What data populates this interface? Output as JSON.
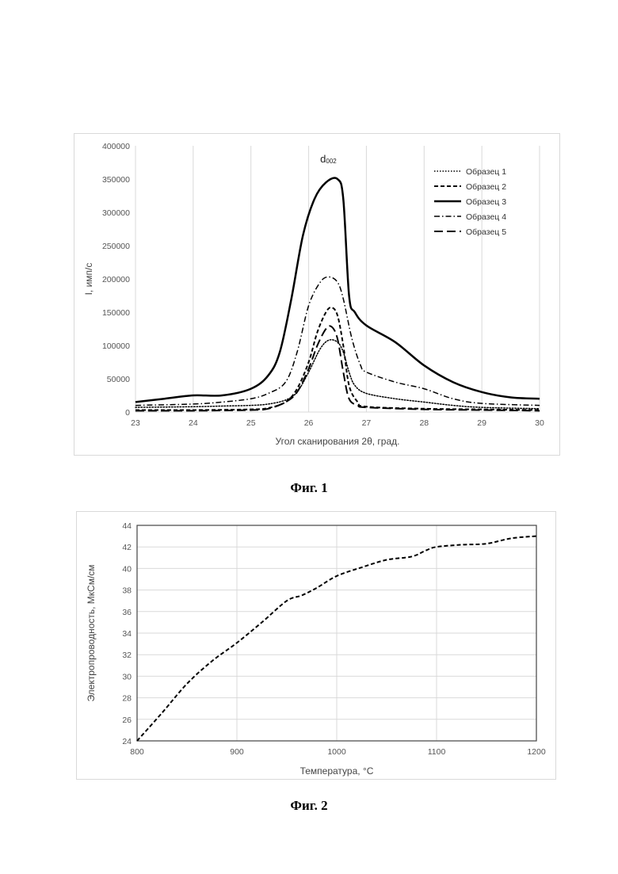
{
  "chart_data": [
    {
      "type": "line",
      "title": "",
      "xlabel": "Угол сканирования 2θ, град.",
      "ylabel": "I, имп/с",
      "xlim": [
        23,
        30
      ],
      "ylim": [
        0,
        400000
      ],
      "xticks": [
        23,
        24,
        25,
        26,
        27,
        28,
        29,
        30
      ],
      "yticks": [
        0,
        50000,
        100000,
        150000,
        200000,
        250000,
        300000,
        350000,
        400000
      ],
      "grid": "vertical",
      "legend_position": "top-right",
      "annotation": {
        "base": "d",
        "sub": "002",
        "x": 26.2,
        "y": 375000
      },
      "series": [
        {
          "name": "Образец 1",
          "dash": "dotted",
          "width": 1.5,
          "x": [
            23,
            24,
            24.5,
            25,
            25.3,
            25.6,
            25.8,
            26.0,
            26.2,
            26.35,
            26.5,
            26.6,
            26.7,
            26.8,
            27.0,
            27.5,
            28.0,
            28.5,
            29.0,
            30.0
          ],
          "y": [
            7000,
            8000,
            9000,
            10000,
            12000,
            18000,
            30000,
            60000,
            95000,
            108000,
            105000,
            90000,
            60000,
            40000,
            28000,
            20000,
            15000,
            10000,
            7000,
            5000
          ]
        },
        {
          "name": "Образец 2",
          "dash": "dashed",
          "width": 2,
          "x": [
            23,
            24,
            25,
            25.3,
            25.6,
            25.8,
            26.0,
            26.15,
            26.3,
            26.4,
            26.5,
            26.6,
            26.7,
            26.85,
            27.0,
            28.0,
            29.0,
            30.0
          ],
          "y": [
            3000,
            3000,
            4000,
            6000,
            15000,
            35000,
            75000,
            120000,
            150000,
            157000,
            145000,
            100000,
            40000,
            15000,
            8000,
            5000,
            4000,
            3000
          ]
        },
        {
          "name": "Образец 3",
          "dash": "solid",
          "width": 2.5,
          "x": [
            23,
            23.5,
            24,
            24.5,
            25,
            25.3,
            25.5,
            25.7,
            25.9,
            26.1,
            26.3,
            26.5,
            26.6,
            26.7,
            26.8,
            27.0,
            27.5,
            28.0,
            28.5,
            29.0,
            29.5,
            30.0
          ],
          "y": [
            15000,
            20000,
            25000,
            25000,
            35000,
            55000,
            90000,
            170000,
            265000,
            320000,
            345000,
            350000,
            320000,
            175000,
            150000,
            130000,
            105000,
            70000,
            45000,
            30000,
            22000,
            20000
          ]
        },
        {
          "name": "Образец 4",
          "dash": "dashdot",
          "width": 1.5,
          "x": [
            23,
            24,
            24.5,
            25,
            25.3,
            25.6,
            25.8,
            26.0,
            26.2,
            26.35,
            26.5,
            26.6,
            26.75,
            26.9,
            27.0,
            27.5,
            28.0,
            28.5,
            29.0,
            30.0
          ],
          "y": [
            10000,
            12000,
            15000,
            20000,
            28000,
            45000,
            90000,
            160000,
            195000,
            203000,
            195000,
            170000,
            110000,
            70000,
            60000,
            45000,
            35000,
            20000,
            13000,
            10000
          ]
        },
        {
          "name": "Образец 5",
          "dash": "longdash",
          "width": 2,
          "x": [
            23,
            24,
            25,
            25.3,
            25.6,
            25.8,
            26.0,
            26.15,
            26.3,
            26.4,
            26.5,
            26.6,
            26.7,
            26.85,
            27.0,
            28.0,
            29.0,
            30.0
          ],
          "y": [
            2000,
            2000,
            3000,
            5000,
            15000,
            30000,
            65000,
            100000,
            125000,
            128000,
            110000,
            60000,
            20000,
            10000,
            7000,
            4000,
            3000,
            2000
          ]
        }
      ]
    },
    {
      "type": "line",
      "title": "",
      "xlabel": "Температура, °C",
      "ylabel": "Электропроводность, МкСм/см",
      "xlim": [
        800,
        1200
      ],
      "ylim": [
        24,
        44
      ],
      "xticks": [
        800,
        900,
        1000,
        1100,
        1200
      ],
      "yticks": [
        24,
        26,
        28,
        30,
        32,
        34,
        36,
        38,
        40,
        42,
        44
      ],
      "grid": "both",
      "series": [
        {
          "name": "",
          "dash": "dashed",
          "width": 2,
          "x": [
            800,
            825,
            850,
            875,
            900,
            925,
            950,
            965,
            980,
            1000,
            1025,
            1050,
            1075,
            1090,
            1100,
            1125,
            1150,
            1175,
            1200
          ],
          "y": [
            24.0,
            26.6,
            29.3,
            31.4,
            33.1,
            35.0,
            37.0,
            37.5,
            38.2,
            39.3,
            40.1,
            40.8,
            41.1,
            41.7,
            42.0,
            42.2,
            42.3,
            42.8,
            43.0
          ]
        }
      ]
    }
  ],
  "captions": {
    "fig1": "Фиг. 1",
    "fig2": "Фиг. 2"
  }
}
